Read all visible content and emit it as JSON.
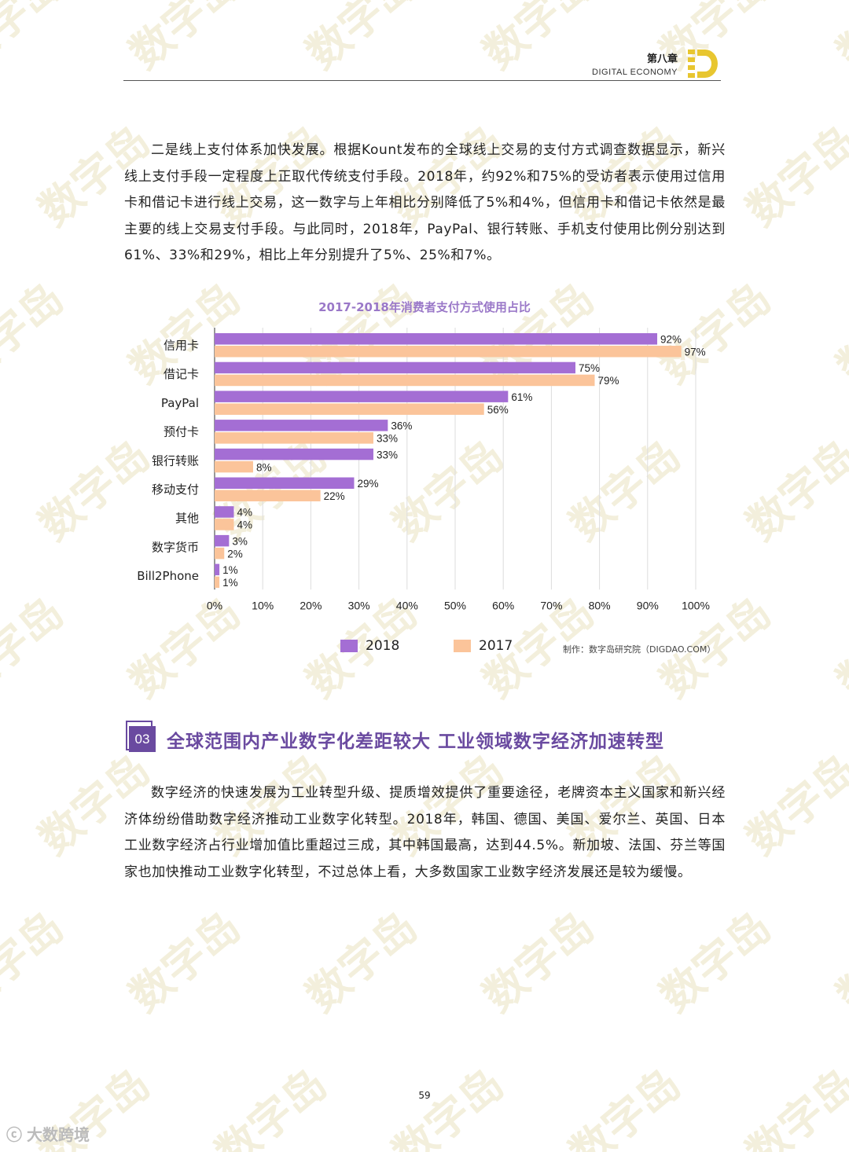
{
  "header": {
    "chapter": "第八章",
    "subtitle": "DIGITAL  ECONOMY"
  },
  "watermark": {
    "text": "数字岛"
  },
  "paragraph1": "二是线上支付体系加快发展。根据Kount发布的全球线上交易的支付方式调查数据显示，新兴线上支付手段一定程度上正取代传统支付手段。2018年，约92%和75%的受访者表示使用过信用卡和借记卡进行线上交易，这一数字与上年相比分别降低了5%和4%，但信用卡和借记卡依然是最主要的线上交易支付手段。与此同时，2018年，PayPal、银行转账、手机支付使用比例分别达到61%、33%和29%，相比上年分别提升了5%、25%和7%。",
  "chart_data": {
    "type": "bar",
    "orientation": "horizontal",
    "title": "2017-2018年消费者支付方式使用占比",
    "categories": [
      "信用卡",
      "借记卡",
      "PayPal",
      "预付卡",
      "银行转账",
      "移动支付",
      "其他",
      "数字货币",
      "Bill2Phone"
    ],
    "series": [
      {
        "name": "2018",
        "values": [
          92,
          75,
          61,
          36,
          33,
          29,
          4,
          3,
          1
        ],
        "color": "#a46ed4"
      },
      {
        "name": "2017",
        "values": [
          97,
          79,
          56,
          33,
          8,
          22,
          4,
          2,
          1
        ],
        "color": "#fbc49a"
      }
    ],
    "xlim": [
      0,
      100
    ],
    "xticks": [
      "0%",
      "10%",
      "20%",
      "30%",
      "40%",
      "50%",
      "60%",
      "70%",
      "80%",
      "90%",
      "100%"
    ],
    "grid": true,
    "legend_position": "bottom",
    "credit": "制作：数字岛研究院（DIGDAO.COM）"
  },
  "section3": {
    "number": "03",
    "title": "全球范围内产业数字化差距较大  工业领域数字经济加速转型"
  },
  "paragraph2": "数字经济的快速发展为工业转型升级、提质增效提供了重要途径，老牌资本主义国家和新兴经济体纷纷借助数字经济推动工业数字化转型。2018年，韩国、德国、美国、爱尔兰、英国、日本工业数字经济占行业增加值比重超过三成，其中韩国最高，达到44.5%。新加坡、法国、芬兰等国家也加快推动工业数字化转型，不过总体上看，大多数国家工业数字经济发展还是较为缓慢。",
  "page_number": "59",
  "footer": {
    "brand": "大数跨境"
  }
}
